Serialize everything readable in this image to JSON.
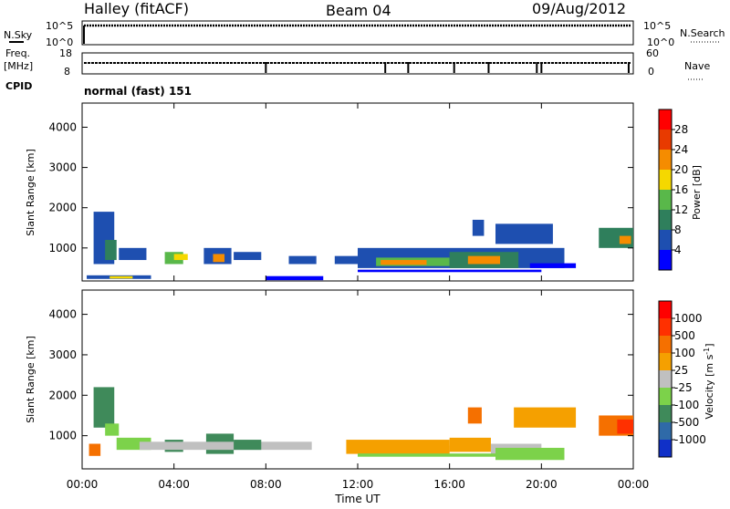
{
  "header": {
    "station": "Halley (fitACF)",
    "beam": "Beam 04",
    "date": "09/Aug/2012"
  },
  "status_panels": {
    "nsky_label": "N.Sky",
    "nsky_ticks": [
      "10^5",
      "10^0"
    ],
    "nsearch_label": "N.Search",
    "nsearch_ticks": [
      "10^5",
      "10^0"
    ],
    "freq_label_1": "Freq.",
    "freq_label_2": "[MHz]",
    "freq_ticks": [
      "18",
      "8"
    ],
    "nave_label": "Nave",
    "nave_ticks": [
      "60",
      "0"
    ],
    "cpid_label": "CPID",
    "cpid_value": "normal (fast) 151"
  },
  "chart_data": [
    {
      "type": "heatmap",
      "name": "power",
      "ylabel": "Slant Range [km]",
      "ylim": [
        180,
        4600
      ],
      "yticks": [
        "4000",
        "3000",
        "2000",
        "1000"
      ],
      "colorbar_label": "Power [dB]",
      "colorbar_ticks": [
        "28",
        "24",
        "20",
        "16",
        "12",
        "8",
        "4"
      ],
      "colors": [
        "#0000ff",
        "#1e4fb0",
        "#2f7f5c",
        "#59b84a",
        "#f5d800",
        "#f58c00",
        "#e83a00",
        "#ff0000"
      ],
      "xlim": [
        0,
        24
      ],
      "xticks": [
        "00:00",
        "04:00",
        "08:00",
        "12:00",
        "16:00",
        "20:00",
        "00:00"
      ]
    },
    {
      "type": "heatmap",
      "name": "velocity",
      "ylabel": "Slant Range [km]",
      "ylim": [
        180,
        4600
      ],
      "yticks": [
        "4000",
        "3000",
        "2000",
        "1000"
      ],
      "colorbar_label": "Velocity [m s",
      "colorbar_label_sup": "-1",
      "colorbar_label_end": "]",
      "colorbar_ticks": [
        "1000",
        "500",
        "100",
        "25",
        "-25",
        "-100",
        "-500",
        "-1000"
      ],
      "colors": [
        "#1030c8",
        "#2f6aa8",
        "#3f8a5a",
        "#7cd24a",
        "#c0c0c0",
        "#f5a000",
        "#f57000",
        "#ff3000",
        "#ff0000"
      ],
      "xlim": [
        0,
        24
      ],
      "xticks": [
        "00:00",
        "04:00",
        "08:00",
        "12:00",
        "16:00",
        "20:00",
        "00:00"
      ],
      "xlabel": "Time UT"
    }
  ]
}
